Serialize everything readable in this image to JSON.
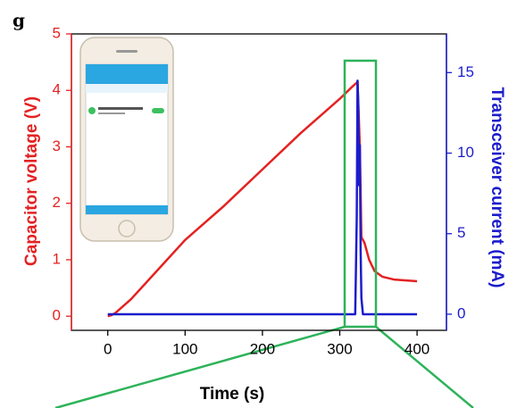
{
  "chart_data": {
    "type": "line",
    "panel_label": "g",
    "xlabel": "Time (s)",
    "ylabel": "Capacitor voltage (V)",
    "y2label": "Transceiver current (mA)",
    "xlim": [
      -47,
      438
    ],
    "xticks": [
      0,
      100,
      200,
      300,
      400
    ],
    "ylim": [
      -0.25,
      5
    ],
    "yticks": [
      0,
      1,
      2,
      3,
      4,
      5
    ],
    "y2lim": [
      -1,
      17.4
    ],
    "y2ticks": [
      0,
      5,
      10,
      15
    ],
    "series": [
      {
        "color": "#e32222",
        "x": [
          0,
          5,
          10,
          30,
          60,
          100,
          150,
          200,
          250,
          300,
          315,
          323,
          326,
          328,
          332,
          338,
          345,
          355,
          370,
          400
        ],
        "values": [
          0,
          0.02,
          0.06,
          0.3,
          0.75,
          1.35,
          1.95,
          2.6,
          3.25,
          3.85,
          4.05,
          4.15,
          3.0,
          1.4,
          1.3,
          1.0,
          0.8,
          0.7,
          0.65,
          0.62
        ]
      },
      {
        "color": "#1c1ccc",
        "axis": "y2",
        "x": [
          0,
          320,
          322,
          323,
          324,
          325,
          326,
          327,
          328,
          330,
          400
        ],
        "values": [
          0,
          0,
          6,
          14.5,
          13,
          8,
          10.5,
          4,
          1,
          0,
          0
        ]
      }
    ]
  }
}
